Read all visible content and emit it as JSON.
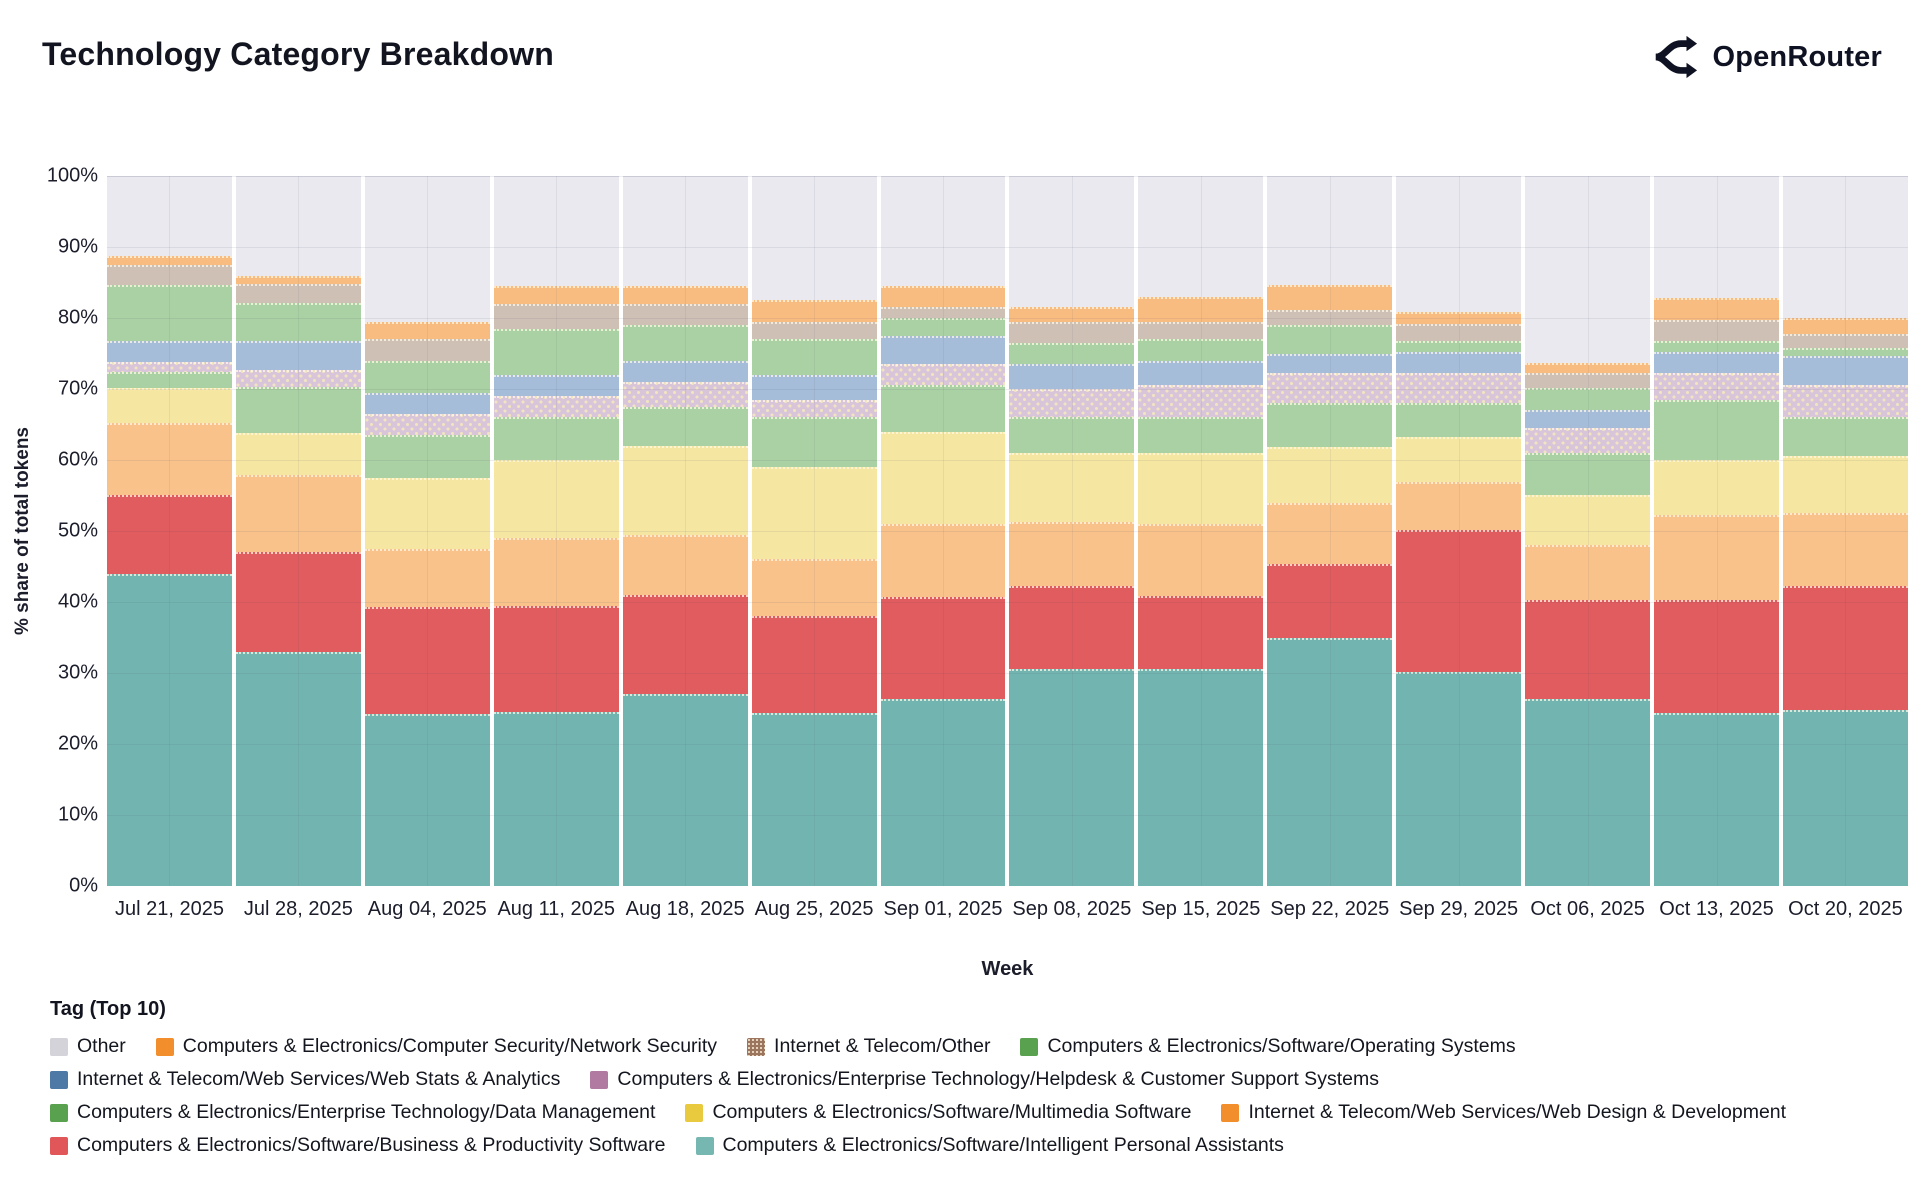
{
  "header": {
    "title": "Technology Category Breakdown",
    "brand": "OpenRouter"
  },
  "chart_data": {
    "type": "bar",
    "variant": "stacked-100-percent",
    "title": "Technology Category Breakdown",
    "xlabel": "Week",
    "ylabel": "% share of total tokens",
    "ylim": [
      0,
      100
    ],
    "grid": true,
    "legend_position": "bottom",
    "ytick_labels": [
      "0%",
      "10%",
      "20%",
      "30%",
      "40%",
      "50%",
      "60%",
      "70%",
      "80%",
      "90%",
      "100%"
    ],
    "categories": [
      "Jul 21, 2025",
      "Jul 28, 2025",
      "Aug 04, 2025",
      "Aug 11, 2025",
      "Aug 18, 2025",
      "Aug 25, 2025",
      "Sep 01, 2025",
      "Sep 08, 2025",
      "Sep 15, 2025",
      "Sep 22, 2025",
      "Sep 29, 2025",
      "Oct 06, 2025",
      "Oct 13, 2025",
      "Oct 20, 2025"
    ],
    "series": [
      {
        "key": "ipa",
        "name": "Computers & Electronics/Software/Intelligent Personal Assistants",
        "fill": "#72b5b0",
        "swatch": "#76b7b2",
        "pattern": "none",
        "values": [
          44.0,
          33.0,
          24.2,
          24.5,
          27.0,
          24.3,
          26.3,
          30.5,
          30.5,
          35.0,
          30.2,
          26.4,
          24.4,
          24.8
        ]
      },
      {
        "key": "bps",
        "name": "Computers & Electronics/Software/Business & Productivity Software",
        "fill": "#e15c5e",
        "swatch": "#e15759",
        "pattern": "none",
        "values": [
          11.1,
          14.1,
          15.1,
          15.0,
          14.0,
          13.7,
          14.4,
          11.8,
          10.3,
          10.3,
          19.9,
          13.9,
          15.9,
          17.4
        ]
      },
      {
        "key": "wdd",
        "name": "Internet & Telecom/Web Services/Web Design & Development",
        "fill": "#f9c28b",
        "swatch": "#f28e2b",
        "pattern": "none",
        "values": [
          10.1,
          10.8,
          8.2,
          9.5,
          8.5,
          8.0,
          10.3,
          9.0,
          10.2,
          8.6,
          6.8,
          7.7,
          12.0,
          10.3
        ]
      },
      {
        "key": "mms",
        "name": "Computers & Electronics/Software/Multimedia Software",
        "fill": "#f5e7a1",
        "swatch": "#e9c93e",
        "pattern": "none",
        "values": [
          4.9,
          5.9,
          10.0,
          11.0,
          12.5,
          13.0,
          13.0,
          9.7,
          10.0,
          8.0,
          6.4,
          7.1,
          7.7,
          8.0
        ]
      },
      {
        "key": "dm",
        "name": "Computers & Electronics/Enterprise Technology/Data Management",
        "fill": "#aad1a3",
        "swatch": "#5aa14f",
        "pattern": "none",
        "values": [
          2.3,
          6.5,
          6.0,
          6.0,
          5.5,
          7.0,
          6.5,
          5.0,
          5.0,
          6.1,
          4.7,
          5.9,
          8.4,
          5.6
        ]
      },
      {
        "key": "hcs",
        "name": "Computers & Electronics/Enterprise Technology/Helpdesk & Customer Support Systems",
        "fill": "#d8c5da",
        "swatch": "#b07aa1",
        "pattern": "dots",
        "values": [
          1.4,
          2.4,
          3.0,
          3.0,
          3.5,
          2.5,
          3.0,
          4.0,
          4.5,
          4.2,
          4.2,
          3.5,
          3.8,
          4.5
        ]
      },
      {
        "key": "wsa",
        "name": "Internet & Telecom/Web Services/Web Stats & Analytics",
        "fill": "#a5bdd8",
        "swatch": "#4e79a7",
        "pattern": "none",
        "values": [
          2.9,
          4.0,
          3.0,
          3.0,
          3.0,
          3.5,
          4.0,
          3.5,
          3.5,
          2.8,
          3.0,
          2.5,
          3.0,
          4.0
        ]
      },
      {
        "key": "os",
        "name": "Computers & Electronics/Software/Operating Systems",
        "fill": "#aad1a3",
        "swatch": "#5aa14f",
        "pattern": "none",
        "values": [
          7.9,
          5.4,
          4.5,
          6.5,
          5.0,
          5.0,
          2.5,
          3.0,
          3.0,
          4.0,
          1.5,
          3.2,
          1.5,
          1.2
        ]
      },
      {
        "key": "ito",
        "name": "Internet & Telecom/Other",
        "fill": "#cfc0b6",
        "swatch": "#9c755f",
        "pattern": "fine-dots",
        "values": [
          2.9,
          2.7,
          3.0,
          3.5,
          3.0,
          2.5,
          1.5,
          3.0,
          2.5,
          2.1,
          2.5,
          2.0,
          3.0,
          1.9
        ]
      },
      {
        "key": "ns",
        "name": "Computers & Electronics/Computer Security/Network Security",
        "fill": "#f9bc80",
        "swatch": "#f28e2b",
        "pattern": "none",
        "values": [
          1.3,
          1.1,
          2.5,
          2.5,
          2.5,
          3.0,
          3.0,
          2.0,
          3.5,
          3.5,
          1.7,
          1.4,
          3.1,
          2.3
        ]
      },
      {
        "key": "other",
        "name": "Other",
        "fill": "#e9e9ef",
        "swatch": "#d3d3d9",
        "pattern": "none",
        "values": [
          11.2,
          14.1,
          20.5,
          15.5,
          15.5,
          17.5,
          15.5,
          18.5,
          17.0,
          15.4,
          19.1,
          26.4,
          17.2,
          20.0
        ]
      }
    ]
  },
  "legend": {
    "title": "Tag (Top 10)",
    "rows": [
      [
        "other",
        "ns",
        "ito",
        "os"
      ],
      [
        "wsa",
        "hcs"
      ],
      [
        "dm",
        "mms",
        "wdd"
      ],
      [
        "bps",
        "ipa"
      ]
    ]
  }
}
